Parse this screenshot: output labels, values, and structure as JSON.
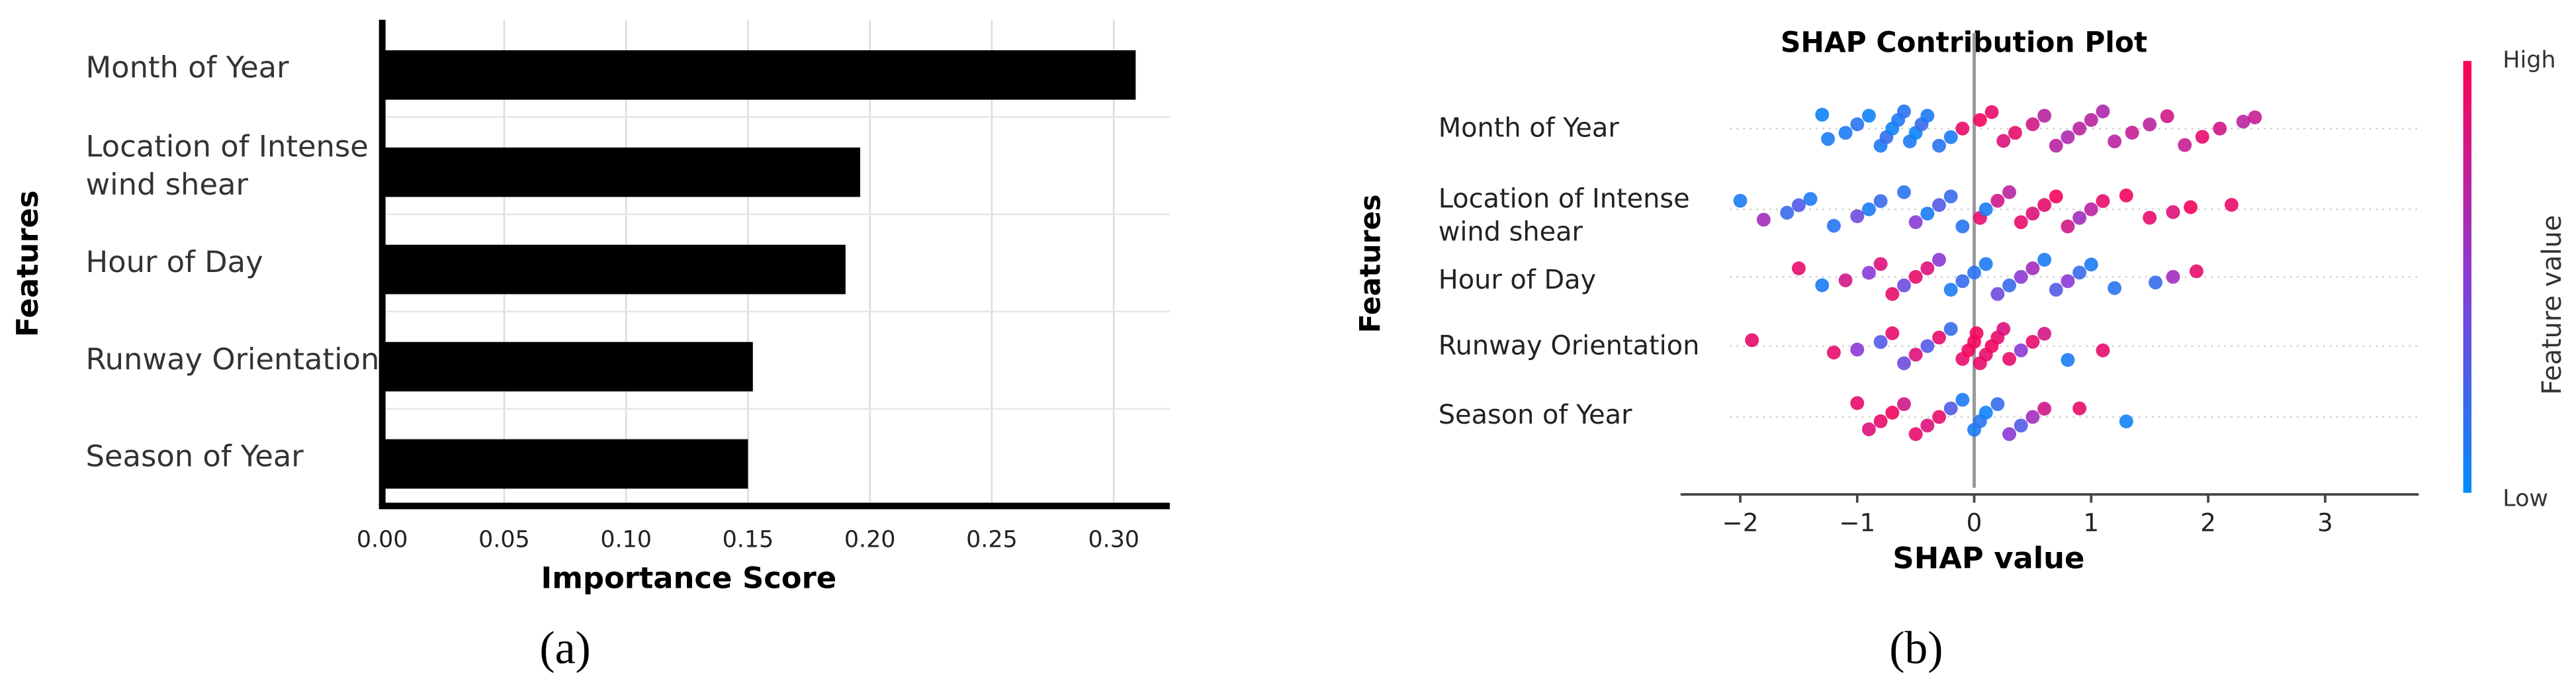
{
  "chart_data": [
    {
      "type": "bar",
      "orientation": "horizontal",
      "panel_label": "(a)",
      "x_label": "Importance Score",
      "y_label": "Features",
      "categories": [
        "Month of Year",
        "Location of Intense wind shear",
        "Hour of Day",
        "Runway Orientation",
        "Season of Year"
      ],
      "values": [
        0.309,
        0.196,
        0.19,
        0.152,
        0.15
      ],
      "color": "#000000",
      "grid": true,
      "xlim": [
        0,
        0.323
      ],
      "xticks": [
        {
          "value": 0,
          "label": "0.00"
        },
        {
          "value": 0.05,
          "label": "0.05"
        },
        {
          "value": 0.1,
          "label": "0.10"
        },
        {
          "value": 0.15,
          "label": "0.15"
        },
        {
          "value": 0.2,
          "label": "0.20"
        },
        {
          "value": 0.25,
          "label": "0.25"
        },
        {
          "value": 0.3,
          "label": "0.30"
        }
      ]
    },
    {
      "type": "beeswarm",
      "panel_label": "(b)",
      "title": "SHAP Contribution Plot",
      "x_label": "SHAP value",
      "y_label": "Features",
      "xlim": [
        -2.51,
        3.8
      ],
      "xticks": [
        {
          "value": -2,
          "label": "−2"
        },
        {
          "value": -1,
          "label": "−1"
        },
        0,
        1,
        2,
        3
      ],
      "colorbar": {
        "title": "Feature value",
        "high_label": "High",
        "low_label": "Low",
        "colors": [
          "#008bfb",
          "#8a3ad6",
          "#ff0052"
        ]
      },
      "series": [
        {
          "name": "Month of Year",
          "values": [
            -1.3,
            -1.25,
            -1.1,
            -1.0,
            -0.9,
            -0.8,
            -0.75,
            -0.7,
            -0.65,
            -0.6,
            -0.55,
            -0.5,
            -0.45,
            -0.4,
            -0.3,
            -0.2,
            -0.1,
            0.05,
            0.15,
            0.25,
            0.35,
            0.5,
            0.6,
            0.7,
            0.8,
            0.9,
            1.0,
            1.1,
            1.2,
            1.35,
            1.5,
            1.65,
            1.8,
            1.95,
            2.1,
            2.3,
            2.4
          ],
          "feature_values": [
            0.05,
            0.1,
            0.1,
            0.15,
            0.05,
            0.1,
            0.2,
            0.05,
            0.1,
            0.15,
            0.1,
            0.05,
            0.2,
            0.1,
            0.15,
            0.1,
            0.9,
            0.95,
            0.9,
            0.85,
            0.9,
            0.8,
            0.7,
            0.7,
            0.65,
            0.7,
            0.7,
            0.65,
            0.7,
            0.75,
            0.7,
            0.8,
            0.75,
            0.9,
            0.8,
            0.7,
            0.75
          ]
        },
        {
          "name": "Location of Intense wind shear",
          "values": [
            -2.0,
            -1.8,
            -1.6,
            -1.5,
            -1.4,
            -1.2,
            -1.0,
            -0.9,
            -0.8,
            -0.6,
            -0.5,
            -0.4,
            -0.3,
            -0.2,
            -0.1,
            0.05,
            0.1,
            0.2,
            0.3,
            0.4,
            0.5,
            0.6,
            0.7,
            0.8,
            0.9,
            1.0,
            1.1,
            1.3,
            1.5,
            1.7,
            1.85,
            2.2
          ],
          "feature_values": [
            0.1,
            0.6,
            0.2,
            0.3,
            0.1,
            0.15,
            0.4,
            0.1,
            0.2,
            0.15,
            0.5,
            0.1,
            0.3,
            0.2,
            0.15,
            0.9,
            0.1,
            0.8,
            0.7,
            0.9,
            0.85,
            0.9,
            0.95,
            0.8,
            0.6,
            0.7,
            0.9,
            0.95,
            0.9,
            0.85,
            0.95,
            0.9
          ]
        },
        {
          "name": "Hour of Day",
          "values": [
            -1.5,
            -1.3,
            -1.1,
            -0.9,
            -0.8,
            -0.7,
            -0.6,
            -0.5,
            -0.4,
            -0.3,
            -0.2,
            -0.1,
            0,
            0.1,
            0.2,
            0.3,
            0.4,
            0.5,
            0.6,
            0.7,
            0.8,
            0.9,
            1.0,
            1.2,
            1.55,
            1.7,
            1.9
          ],
          "feature_values": [
            0.9,
            0.1,
            0.8,
            0.5,
            0.85,
            0.9,
            0.4,
            0.9,
            0.85,
            0.5,
            0.1,
            0.2,
            0.15,
            0.1,
            0.4,
            0.2,
            0.5,
            0.6,
            0.1,
            0.3,
            0.5,
            0.2,
            0.1,
            0.15,
            0.2,
            0.6,
            0.9
          ]
        },
        {
          "name": "Runway Orientation",
          "values": [
            -1.9,
            -1.2,
            -1.0,
            -0.8,
            -0.7,
            -0.6,
            -0.5,
            -0.4,
            -0.3,
            -0.2,
            -0.1,
            -0.05,
            0,
            0.02,
            0.05,
            0.1,
            0.15,
            0.2,
            0.25,
            0.3,
            0.4,
            0.5,
            0.6,
            0.8,
            1.1
          ],
          "feature_values": [
            0.9,
            0.9,
            0.5,
            0.3,
            0.9,
            0.4,
            0.85,
            0.3,
            0.9,
            0.2,
            0.9,
            0.95,
            0.95,
            0.95,
            0.9,
            0.9,
            0.95,
            0.9,
            0.85,
            0.9,
            0.5,
            0.9,
            0.8,
            0.1,
            0.9
          ]
        },
        {
          "name": "Season of Year",
          "values": [
            -1.0,
            -0.9,
            -0.8,
            -0.7,
            -0.6,
            -0.5,
            -0.4,
            -0.3,
            -0.2,
            -0.1,
            0,
            0.05,
            0.1,
            0.2,
            0.3,
            0.4,
            0.5,
            0.6,
            0.9,
            1.3
          ],
          "feature_values": [
            0.9,
            0.85,
            0.9,
            0.95,
            0.8,
            0.9,
            0.85,
            0.9,
            0.3,
            0.1,
            0.1,
            0.15,
            0.05,
            0.2,
            0.5,
            0.3,
            0.6,
            0.8,
            0.9,
            0.05
          ]
        }
      ]
    }
  ]
}
